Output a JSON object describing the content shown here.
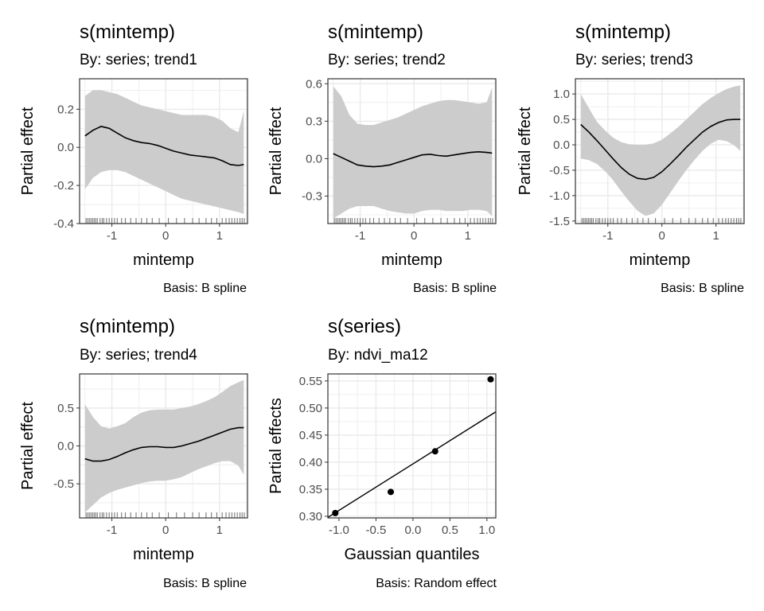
{
  "colors": {
    "band": "#cccccc",
    "line": "#000000",
    "grid": "#ebebeb",
    "rug": "#5a5a5a",
    "border": "#333333"
  },
  "chart_data": [
    {
      "type": "area",
      "title": "s(mintemp)",
      "subtitle": "By: series; trend1",
      "caption": "Basis: B spline",
      "xlabel": "mintemp",
      "ylabel": "Partial effect",
      "xlim": [
        -1.6,
        1.52
      ],
      "ylim": [
        -0.4,
        0.36
      ],
      "xticks": [
        -1,
        0,
        1
      ],
      "yticks": [
        -0.4,
        -0.2,
        0.0,
        0.2
      ],
      "ytick_labels": [
        "-0.4",
        "-0.2",
        "0.0",
        "0.2"
      ],
      "grid": true,
      "series": [
        {
          "x": [
            -1.5,
            -1.35,
            -1.2,
            -1.05,
            -0.9,
            -0.75,
            -0.6,
            -0.45,
            -0.3,
            -0.15,
            0.0,
            0.15,
            0.3,
            0.45,
            0.6,
            0.75,
            0.9,
            1.05,
            1.2,
            1.35,
            1.45
          ],
          "y": [
            0.06,
            0.09,
            0.11,
            0.1,
            0.075,
            0.05,
            0.035,
            0.025,
            0.02,
            0.01,
            -0.005,
            -0.02,
            -0.03,
            -0.04,
            -0.045,
            -0.05,
            -0.055,
            -0.07,
            -0.09,
            -0.095,
            -0.09
          ],
          "lower": [
            -0.22,
            -0.16,
            -0.13,
            -0.12,
            -0.12,
            -0.13,
            -0.15,
            -0.17,
            -0.19,
            -0.21,
            -0.23,
            -0.25,
            -0.27,
            -0.28,
            -0.29,
            -0.3,
            -0.31,
            -0.32,
            -0.33,
            -0.34,
            -0.35
          ],
          "upper": [
            0.27,
            0.3,
            0.3,
            0.29,
            0.28,
            0.26,
            0.24,
            0.22,
            0.21,
            0.2,
            0.19,
            0.18,
            0.17,
            0.17,
            0.17,
            0.17,
            0.16,
            0.14,
            0.1,
            0.08,
            0.19
          ]
        }
      ],
      "rug": [
        -1.48,
        -1.45,
        -1.42,
        -1.39,
        -1.36,
        -1.33,
        -1.3,
        -1.27,
        -1.22,
        -1.18,
        -1.15,
        -1.1,
        -1.05,
        -1.0,
        -0.95,
        -0.9,
        -0.82,
        -0.75,
        -0.65,
        -0.55,
        -0.45,
        -0.35,
        -0.25,
        -0.12,
        0.05,
        0.2,
        0.35,
        0.5,
        0.62,
        0.75,
        0.85,
        0.95,
        1.05,
        1.12,
        1.18,
        1.23,
        1.28,
        1.33,
        1.38,
        1.42,
        1.46
      ]
    },
    {
      "type": "area",
      "title": "s(mintemp)",
      "subtitle": "By: series; trend2",
      "caption": "Basis: B spline",
      "xlabel": "mintemp",
      "ylabel": "Partial effect",
      "xlim": [
        -1.6,
        1.52
      ],
      "ylim": [
        -0.52,
        0.64
      ],
      "xticks": [
        -1,
        0,
        1
      ],
      "yticks": [
        -0.3,
        0.0,
        0.3,
        0.6
      ],
      "ytick_labels": [
        "-0.3",
        "0.0",
        "0.3",
        "0.6"
      ],
      "grid": true,
      "series": [
        {
          "x": [
            -1.5,
            -1.35,
            -1.2,
            -1.05,
            -0.9,
            -0.75,
            -0.6,
            -0.45,
            -0.3,
            -0.15,
            0.0,
            0.15,
            0.3,
            0.45,
            0.6,
            0.75,
            0.9,
            1.05,
            1.2,
            1.35,
            1.45
          ],
          "y": [
            0.04,
            0.01,
            -0.02,
            -0.05,
            -0.06,
            -0.065,
            -0.06,
            -0.05,
            -0.03,
            -0.01,
            0.01,
            0.03,
            0.035,
            0.025,
            0.02,
            0.03,
            0.04,
            0.05,
            0.055,
            0.05,
            0.045
          ],
          "lower": [
            -0.48,
            -0.44,
            -0.4,
            -0.38,
            -0.38,
            -0.38,
            -0.4,
            -0.42,
            -0.43,
            -0.44,
            -0.44,
            -0.42,
            -0.41,
            -0.41,
            -0.42,
            -0.42,
            -0.42,
            -0.41,
            -0.41,
            -0.42,
            -0.46
          ],
          "upper": [
            0.58,
            0.5,
            0.35,
            0.28,
            0.27,
            0.27,
            0.29,
            0.31,
            0.33,
            0.36,
            0.39,
            0.42,
            0.44,
            0.46,
            0.47,
            0.47,
            0.46,
            0.45,
            0.44,
            0.45,
            0.57
          ]
        }
      ],
      "rug": [
        -1.48,
        -1.45,
        -1.42,
        -1.39,
        -1.36,
        -1.33,
        -1.3,
        -1.27,
        -1.22,
        -1.18,
        -1.15,
        -1.1,
        -1.05,
        -1.0,
        -0.95,
        -0.9,
        -0.82,
        -0.75,
        -0.65,
        -0.55,
        -0.45,
        -0.35,
        -0.25,
        -0.12,
        0.05,
        0.2,
        0.35,
        0.5,
        0.62,
        0.75,
        0.85,
        0.95,
        1.05,
        1.12,
        1.18,
        1.23,
        1.28,
        1.33,
        1.38,
        1.42,
        1.46
      ]
    },
    {
      "type": "area",
      "title": "s(mintemp)",
      "subtitle": "By: series; trend3",
      "caption": "Basis: B spline",
      "xlabel": "mintemp",
      "ylabel": "Partial effect",
      "xlim": [
        -1.6,
        1.52
      ],
      "ylim": [
        -1.55,
        1.3
      ],
      "xticks": [
        -1,
        0,
        1
      ],
      "yticks": [
        -1.5,
        -1.0,
        -0.5,
        0.0,
        0.5,
        1.0
      ],
      "ytick_labels": [
        "-1.5",
        "-1.0",
        "-0.5",
        "0.0",
        "0.5",
        "1.0"
      ],
      "grid": true,
      "series": [
        {
          "x": [
            -1.5,
            -1.35,
            -1.2,
            -1.05,
            -0.9,
            -0.75,
            -0.6,
            -0.45,
            -0.3,
            -0.15,
            0.0,
            0.15,
            0.3,
            0.45,
            0.6,
            0.75,
            0.9,
            1.05,
            1.2,
            1.35,
            1.45
          ],
          "y": [
            0.4,
            0.25,
            0.08,
            -0.1,
            -0.28,
            -0.45,
            -0.58,
            -0.66,
            -0.68,
            -0.64,
            -0.53,
            -0.38,
            -0.22,
            -0.05,
            0.1,
            0.25,
            0.36,
            0.44,
            0.49,
            0.5,
            0.5
          ],
          "lower": [
            -0.27,
            -0.3,
            -0.38,
            -0.52,
            -0.7,
            -0.92,
            -1.12,
            -1.3,
            -1.4,
            -1.35,
            -1.18,
            -0.95,
            -0.72,
            -0.5,
            -0.3,
            -0.12,
            0.02,
            0.1,
            0.07,
            -0.02,
            -0.12
          ],
          "upper": [
            1.0,
            0.72,
            0.45,
            0.28,
            0.14,
            0.05,
            0.01,
            0.0,
            0.0,
            0.03,
            0.1,
            0.22,
            0.35,
            0.5,
            0.65,
            0.8,
            0.92,
            1.02,
            1.1,
            1.15,
            1.17
          ]
        }
      ],
      "rug": [
        -1.48,
        -1.45,
        -1.42,
        -1.39,
        -1.36,
        -1.33,
        -1.3,
        -1.27,
        -1.22,
        -1.18,
        -1.15,
        -1.1,
        -1.05,
        -1.0,
        -0.95,
        -0.9,
        -0.82,
        -0.75,
        -0.65,
        -0.55,
        -0.45,
        -0.35,
        -0.25,
        -0.12,
        0.05,
        0.2,
        0.35,
        0.5,
        0.62,
        0.75,
        0.85,
        0.95,
        1.05,
        1.12,
        1.18,
        1.23,
        1.28,
        1.33,
        1.38,
        1.42,
        1.46
      ]
    },
    {
      "type": "area",
      "title": "s(mintemp)",
      "subtitle": "By: series; trend4",
      "caption": "Basis: B spline",
      "xlabel": "mintemp",
      "ylabel": "Partial effect",
      "xlim": [
        -1.6,
        1.52
      ],
      "ylim": [
        -0.95,
        0.95
      ],
      "xticks": [
        -1,
        0,
        1
      ],
      "yticks": [
        -0.5,
        0.0,
        0.5
      ],
      "ytick_labels": [
        "-0.5",
        "0.0",
        "0.5"
      ],
      "grid": true,
      "series": [
        {
          "x": [
            -1.5,
            -1.35,
            -1.2,
            -1.05,
            -0.9,
            -0.75,
            -0.6,
            -0.45,
            -0.3,
            -0.15,
            0.0,
            0.15,
            0.3,
            0.45,
            0.6,
            0.75,
            0.9,
            1.05,
            1.2,
            1.35,
            1.45
          ],
          "y": [
            -0.17,
            -0.2,
            -0.2,
            -0.18,
            -0.14,
            -0.09,
            -0.05,
            -0.02,
            -0.01,
            -0.01,
            -0.02,
            -0.02,
            0.0,
            0.03,
            0.06,
            0.1,
            0.14,
            0.18,
            0.22,
            0.24,
            0.24
          ],
          "lower": [
            -0.88,
            -0.78,
            -0.68,
            -0.62,
            -0.58,
            -0.55,
            -0.52,
            -0.49,
            -0.47,
            -0.46,
            -0.46,
            -0.44,
            -0.41,
            -0.36,
            -0.31,
            -0.27,
            -0.23,
            -0.2,
            -0.2,
            -0.26,
            -0.38
          ],
          "upper": [
            0.55,
            0.38,
            0.26,
            0.23,
            0.26,
            0.3,
            0.38,
            0.44,
            0.47,
            0.48,
            0.48,
            0.48,
            0.5,
            0.52,
            0.55,
            0.59,
            0.64,
            0.71,
            0.79,
            0.84,
            0.87
          ]
        }
      ],
      "rug": [
        -1.48,
        -1.45,
        -1.42,
        -1.39,
        -1.36,
        -1.33,
        -1.3,
        -1.27,
        -1.22,
        -1.18,
        -1.15,
        -1.1,
        -1.05,
        -1.0,
        -0.95,
        -0.9,
        -0.82,
        -0.75,
        -0.65,
        -0.55,
        -0.45,
        -0.35,
        -0.25,
        -0.12,
        0.05,
        0.2,
        0.35,
        0.5,
        0.62,
        0.75,
        0.85,
        0.95,
        1.05,
        1.12,
        1.18,
        1.23,
        1.28,
        1.33,
        1.38,
        1.42,
        1.46
      ]
    },
    {
      "type": "scatter",
      "title": "s(series)",
      "subtitle": "By: ndvi_ma12",
      "caption": "Basis: Random effect",
      "xlabel": "Gaussian quantiles",
      "ylabel": "Partial effects",
      "xlim": [
        -1.15,
        1.12
      ],
      "ylim": [
        0.297,
        0.563
      ],
      "xticks": [
        -1.0,
        -0.5,
        0.0,
        0.5,
        1.0
      ],
      "xtick_labels": [
        "-1.0",
        "-0.5",
        "0.0",
        "0.5",
        "1.0"
      ],
      "yticks": [
        0.3,
        0.35,
        0.4,
        0.45,
        0.5,
        0.55
      ],
      "ytick_labels": [
        "0.30",
        "0.35",
        "0.40",
        "0.45",
        "0.50",
        "0.55"
      ],
      "grid": true,
      "points": {
        "x": [
          -1.05,
          -0.3,
          0.3,
          1.05
        ],
        "y": [
          0.306,
          0.345,
          0.42,
          0.553
        ]
      },
      "reference_line": {
        "x": [
          -1.15,
          1.12
        ],
        "y": [
          0.298,
          0.493
        ]
      }
    }
  ]
}
